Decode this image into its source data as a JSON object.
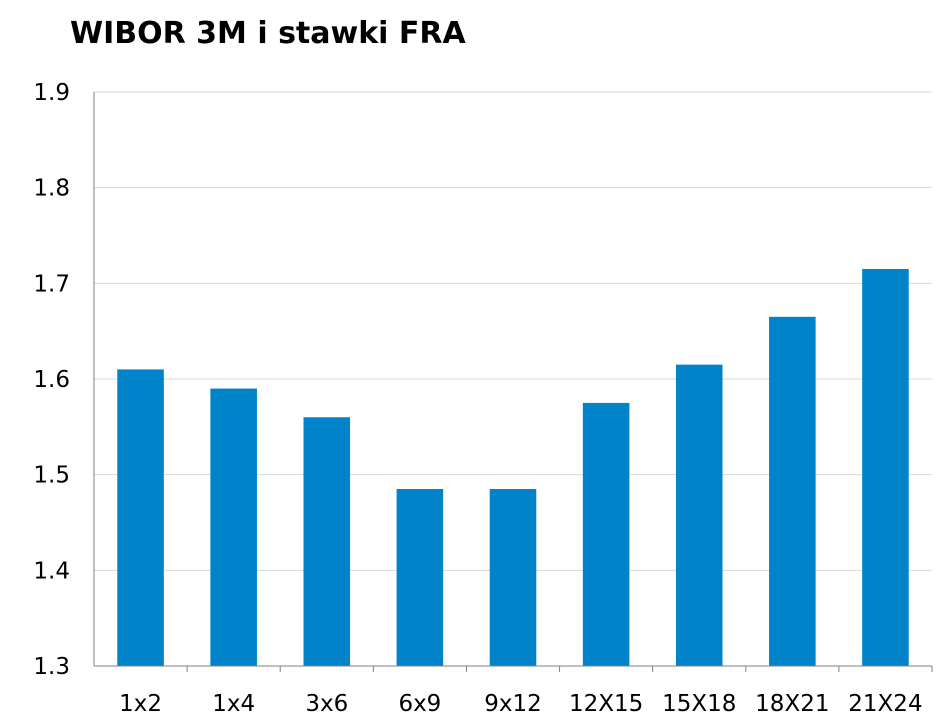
{
  "chart_data": {
    "type": "bar",
    "title": "WIBOR 3M i stawki FRA",
    "xlabel": "",
    "ylabel": "",
    "categories": [
      "1x2",
      "1x4",
      "3x6",
      "6x9",
      "9x12",
      "12X15",
      "15X18",
      "18X21",
      "21X24"
    ],
    "series": [
      {
        "values": [
          1.61,
          1.59,
          1.56,
          1.485,
          1.485,
          1.575,
          1.615,
          1.665,
          1.715
        ]
      }
    ],
    "ylim": [
      1.3,
      1.9
    ],
    "yticks": [
      "1.3",
      "1.4",
      "1.5",
      "1.6",
      "1.7",
      "1.8",
      "1.9"
    ],
    "grid": true,
    "legend": "none",
    "bar_color": "#0083C9",
    "grid_color": "#D9D9D9",
    "axis_color": "#808080"
  }
}
